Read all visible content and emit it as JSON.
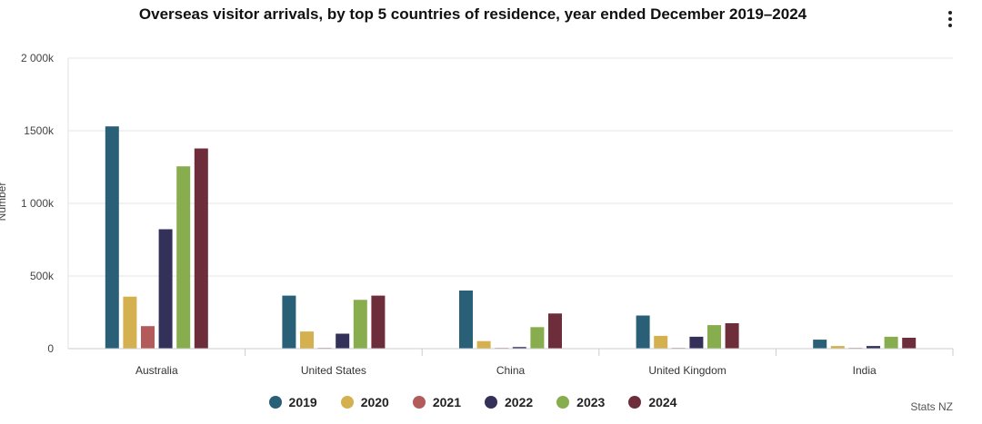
{
  "chart_data": {
    "type": "bar",
    "title": "Overseas visitor arrivals, by top 5 countries of residence, year ended December 2019–2024",
    "ylabel": "Number",
    "xlabel": "",
    "ylim": [
      0,
      2000000
    ],
    "yticks": [
      {
        "value": 0,
        "label": "0"
      },
      {
        "value": 500000,
        "label": "500k"
      },
      {
        "value": 1000000,
        "label": "1 000k"
      },
      {
        "value": 1500000,
        "label": "1500k"
      },
      {
        "value": 2000000,
        "label": "2 000k"
      }
    ],
    "grid": true,
    "legend_position": "bottom",
    "categories": [
      "Australia",
      "United States",
      "China",
      "United Kingdom",
      "India"
    ],
    "series": [
      {
        "name": "2019",
        "color": "#2a5f78",
        "values": [
          1530000,
          365000,
          400000,
          228000,
          62000
        ]
      },
      {
        "name": "2020",
        "color": "#d4b04e",
        "values": [
          358000,
          118000,
          52000,
          88000,
          18000
        ]
      },
      {
        "name": "2021",
        "color": "#b35a5a",
        "values": [
          155000,
          4000,
          1000,
          3000,
          1000
        ]
      },
      {
        "name": "2022",
        "color": "#33305a",
        "values": [
          822000,
          103000,
          11000,
          82000,
          18000
        ]
      },
      {
        "name": "2023",
        "color": "#88ad4f",
        "values": [
          1255000,
          336000,
          148000,
          162000,
          82000
        ]
      },
      {
        "name": "2024",
        "color": "#6e2d3a",
        "values": [
          1378000,
          365000,
          242000,
          175000,
          75000
        ]
      }
    ]
  },
  "credit": "Stats NZ",
  "menu_icon": "more-vertical-icon"
}
